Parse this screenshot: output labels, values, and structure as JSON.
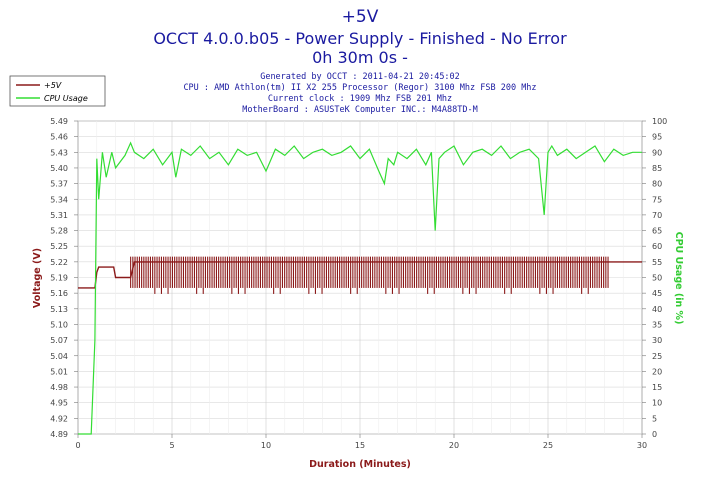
{
  "chart_data": {
    "type": "line",
    "title": "+5V",
    "subtitle": "OCCT 4.0.0.b05 - Power Supply - Finished - No Error",
    "duration": "0h 30m 0s -",
    "info_lines": [
      "Generated by OCCT : 2011-04-21 20:45:02",
      "CPU : AMD Athlon(tm) II X2 255 Processor (Regor) 3100 Mhz FSB 200 Mhz",
      "Current clock : 1909 Mhz FSB 201 Mhz",
      "MotherBoard : ASUSTeK Computer INC.: M4A88TD-M"
    ],
    "xlabel": "Duration (Minutes)",
    "ylabel_left": "Voltage (V)",
    "ylabel_right": "CPU Usage (in %)",
    "xlim": [
      0,
      30
    ],
    "x_ticks": [
      0,
      5,
      10,
      15,
      20,
      25,
      30
    ],
    "ylim_left": [
      4.89,
      5.49
    ],
    "y_ticks_left": [
      "5.49",
      "5.46",
      "5.43",
      "5.40",
      "5.37",
      "5.34",
      "5.31",
      "5.28",
      "5.25",
      "5.22",
      "5.19",
      "5.16",
      "5.13",
      "5.10",
      "5.07",
      "5.04",
      "5.01",
      "4.98",
      "4.95",
      "4.92",
      "4.89"
    ],
    "ylim_right": [
      0,
      100
    ],
    "y_ticks_right": [
      100,
      95,
      90,
      85,
      80,
      75,
      70,
      65,
      60,
      55,
      50,
      45,
      40,
      35,
      30,
      25,
      20,
      15,
      10,
      5,
      0
    ],
    "grid": true,
    "legend_position": "top-left",
    "colors": {
      "voltage": "#8b1a1a",
      "cpu": "#33dd33",
      "title": "#1a1aa0",
      "ylabel_left": "#8b1a1a",
      "ylabel_right": "#33cc33",
      "xlabel": "#8b1a1a"
    },
    "series": [
      {
        "name": "+5V",
        "axis": "left",
        "x": [
          0,
          0.9,
          1.0,
          1.1,
          1.9,
          2.0,
          2.8,
          3.0,
          30.0
        ],
        "values": [
          5.17,
          5.17,
          5.2,
          5.21,
          5.21,
          5.19,
          5.19,
          5.22,
          5.22
        ],
        "band_from": 2.8,
        "band_values": [
          5.17,
          5.23
        ]
      },
      {
        "name": "CPU Usage",
        "axis": "right",
        "x": [
          0,
          0.7,
          0.9,
          1.0,
          1.1,
          1.3,
          1.5,
          1.8,
          2.0,
          2.5,
          2.8,
          3.0,
          3.5,
          4.0,
          4.5,
          5.0,
          5.2,
          5.5,
          6.0,
          6.5,
          7.0,
          7.5,
          8.0,
          8.5,
          9.0,
          9.5,
          10.0,
          10.5,
          11.0,
          11.5,
          12.0,
          12.5,
          13.0,
          13.5,
          14.0,
          14.5,
          15.0,
          15.5,
          16.0,
          16.3,
          16.5,
          16.8,
          17.0,
          17.5,
          18.0,
          18.5,
          18.8,
          19.0,
          19.2,
          19.5,
          20.0,
          20.5,
          21.0,
          21.5,
          22.0,
          22.5,
          23.0,
          23.5,
          24.0,
          24.5,
          24.8,
          25.0,
          25.2,
          25.5,
          26.0,
          26.5,
          27.0,
          27.5,
          28.0,
          28.5,
          29.0,
          29.5,
          30.0
        ],
        "values": [
          0,
          0,
          30,
          88,
          75,
          90,
          82,
          90,
          85,
          89,
          93,
          90,
          88,
          91,
          86,
          90,
          82,
          91,
          89,
          92,
          88,
          90,
          86,
          91,
          89,
          90,
          84,
          91,
          89,
          92,
          88,
          90,
          91,
          89,
          90,
          92,
          88,
          91,
          84,
          80,
          88,
          86,
          90,
          88,
          91,
          86,
          90,
          65,
          88,
          90,
          92,
          86,
          90,
          91,
          89,
          92,
          88,
          90,
          91,
          88,
          70,
          90,
          92,
          89,
          91,
          88,
          90,
          92,
          87,
          91,
          89,
          90,
          90
        ]
      }
    ]
  }
}
